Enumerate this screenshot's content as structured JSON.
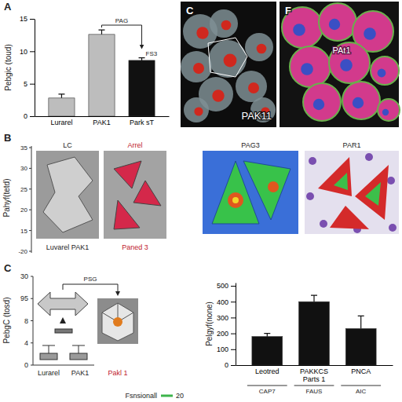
{
  "chart_data": [
    {
      "type": "bar",
      "panel_label": "A",
      "ylabel": "Pebgic (toud)",
      "categories": [
        "Lurarel",
        "PAK1",
        "Park sT"
      ],
      "values": [
        2.8,
        12.6,
        8.6
      ],
      "errors": [
        0.6,
        0.7,
        0.4
      ],
      "colors": [
        "#bdbdbd",
        "#bdbdbd",
        "#111111"
      ],
      "ylim": [
        0,
        15
      ],
      "yticks": [
        0,
        5,
        10,
        15
      ],
      "annotations": [
        "PAG",
        "FS3"
      ]
    },
    {
      "type": "bar",
      "ylabel": "Pelgyf(none)",
      "categories": [
        "Leotred",
        "PAKKCS Parts 1",
        "PNCA"
      ],
      "groups": [
        "CAP7",
        "FAUS",
        "AIC"
      ],
      "values": [
        180,
        400,
        230
      ],
      "errors": [
        20,
        40,
        80
      ],
      "color": "#111111",
      "ylim": [
        0,
        520
      ],
      "yticks": [
        0,
        100,
        200,
        300,
        400,
        500
      ],
      "legend": "bottom",
      "legend_labels": [
        "Fsnsionall",
        "20"
      ],
      "legend_color": "#3cb44b"
    }
  ],
  "figures": {
    "C": {
      "panel_label": "C",
      "label": "PAK11"
    },
    "F": {
      "panel_label": "F",
      "label": "PAt1"
    },
    "B": {
      "panel_label": "B",
      "ylabel": "Pahyf(tetd)",
      "y_tick_labels": [
        "35",
        "30",
        "25",
        "20",
        "15",
        "-20"
      ],
      "titles": [
        "LC",
        "Arrel",
        "PAG3",
        "PAR1"
      ],
      "captions": [
        "Luvarel  PAK1",
        "Paned 3"
      ]
    },
    "box": {
      "panel_label": "C",
      "ylabel": "PebgC (tosd)",
      "y_tick_labels": [
        "30",
        "95",
        "8",
        "4",
        "0"
      ],
      "categories": [
        "Lurarel",
        "PAK1"
      ],
      "annotation": "PSG",
      "caption": "Pakl 1"
    }
  }
}
